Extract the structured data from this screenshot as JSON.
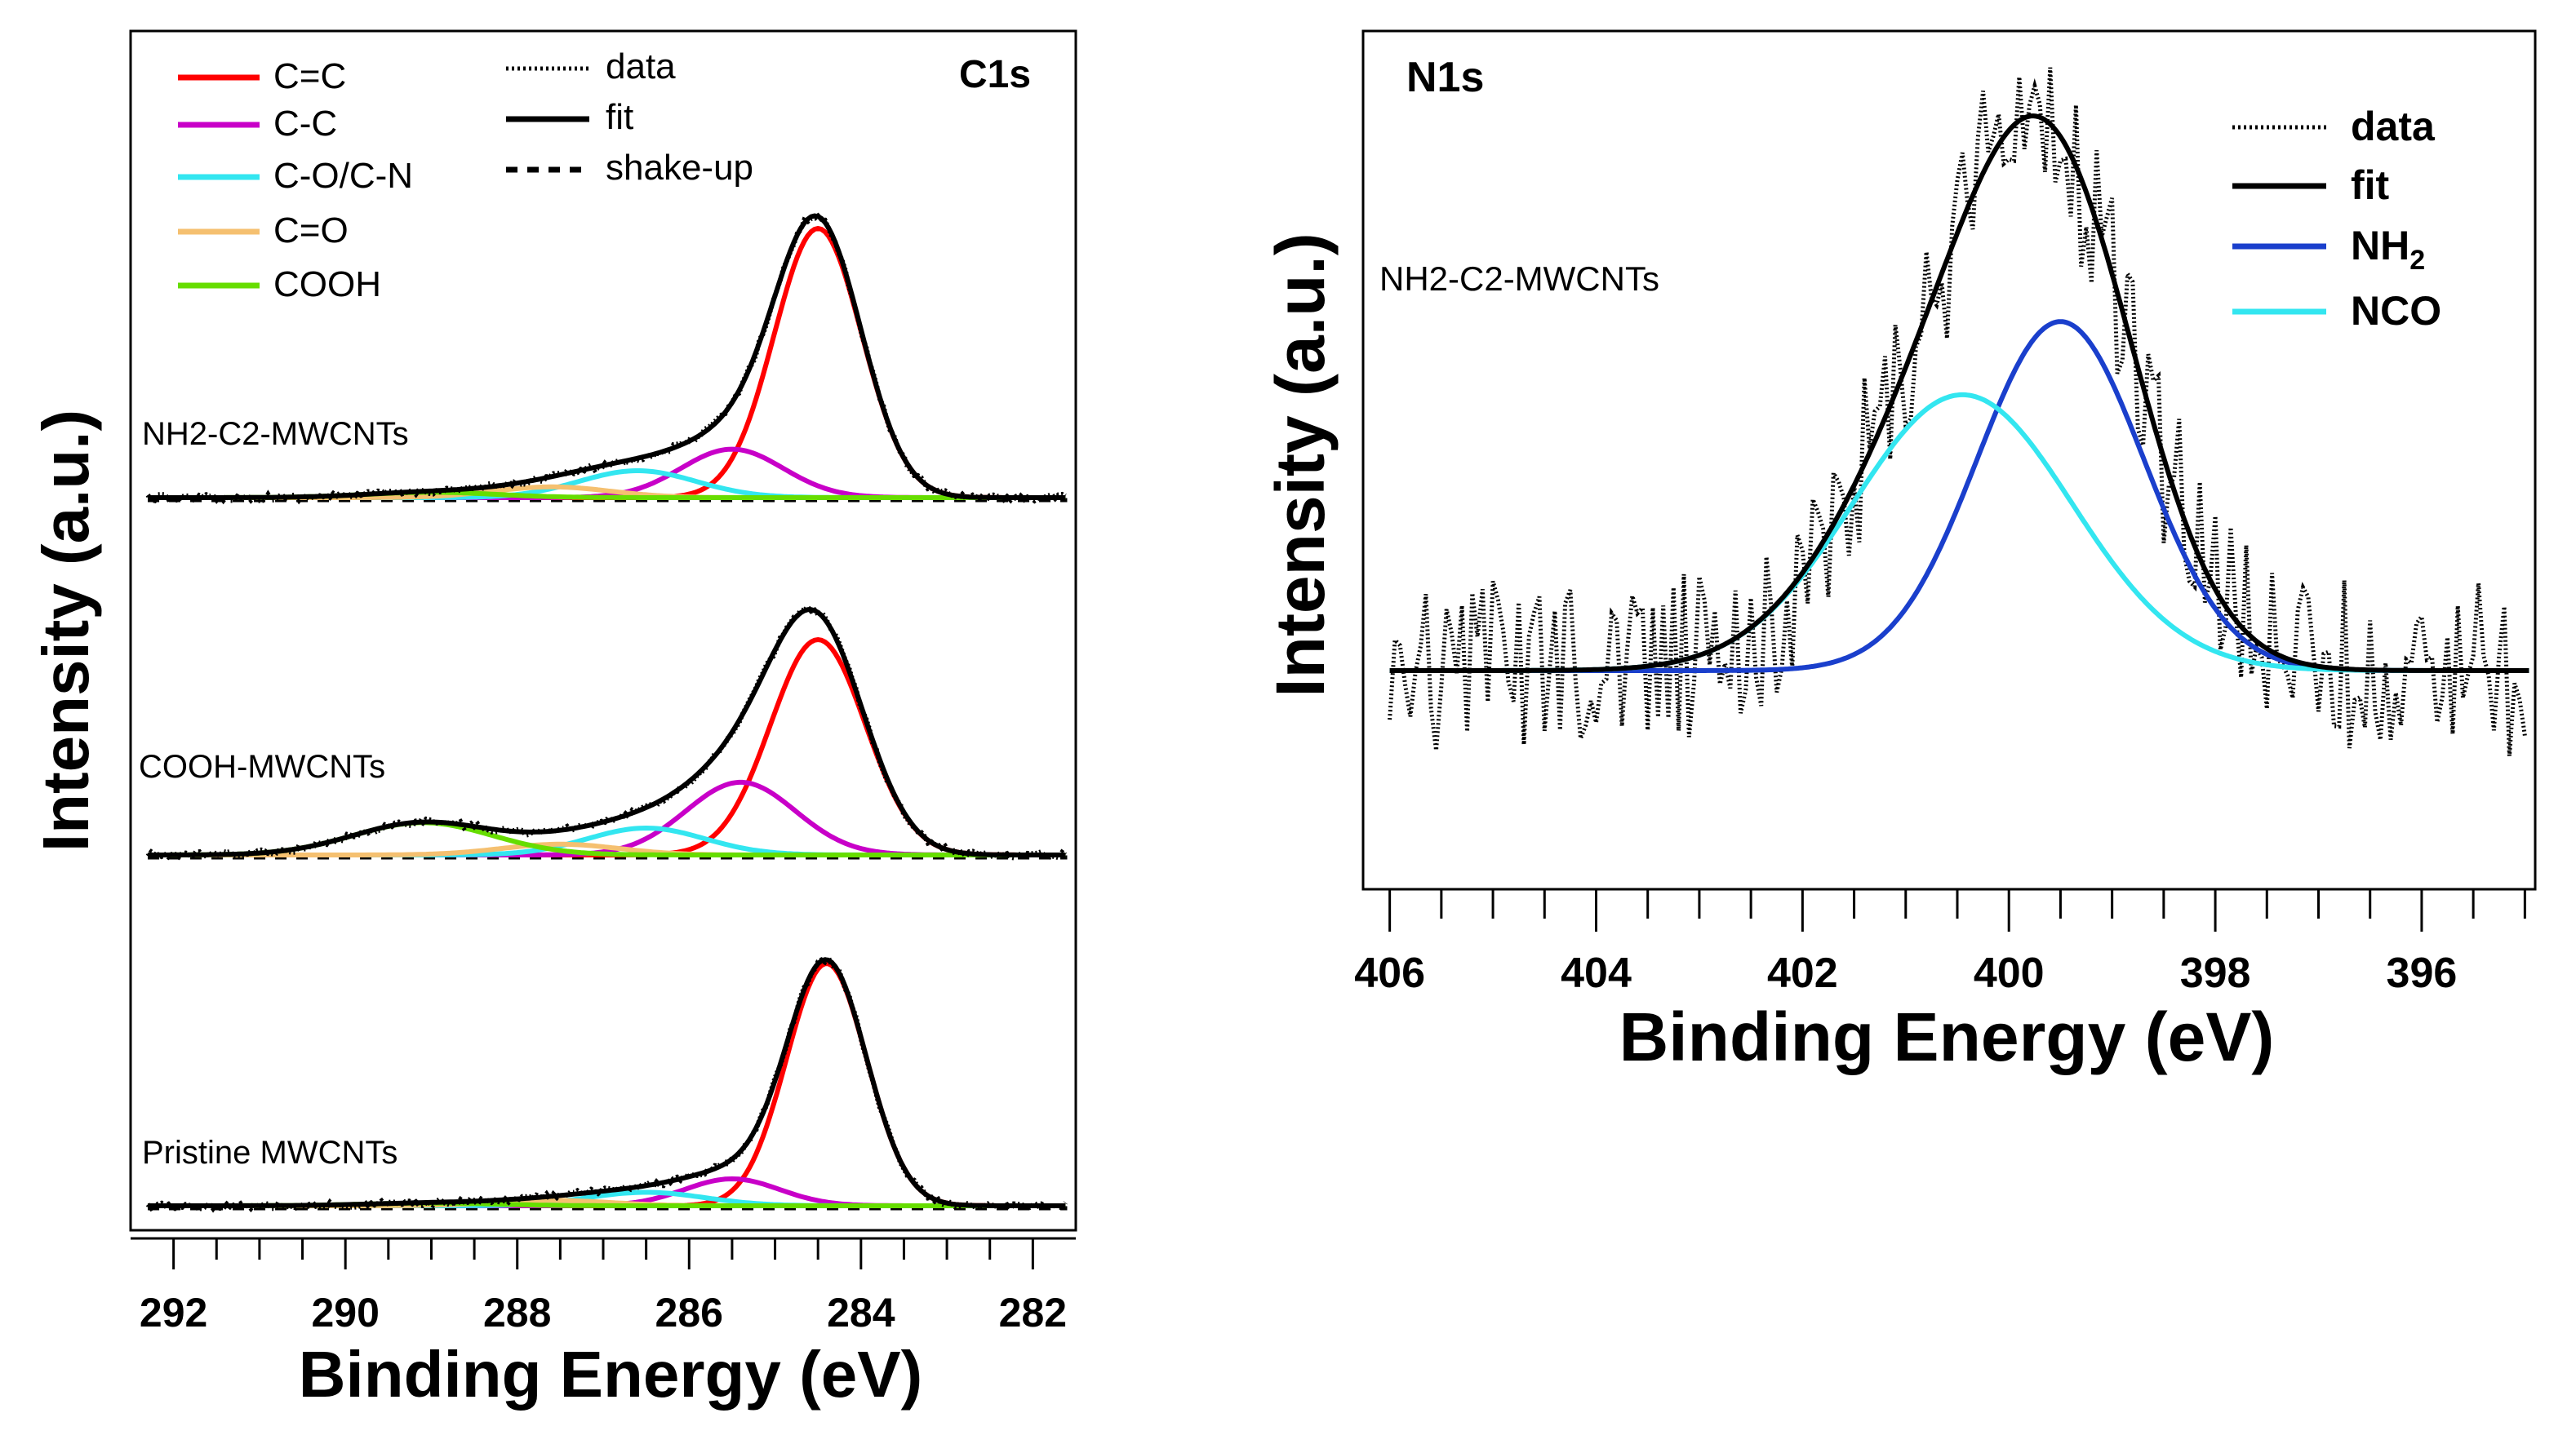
{
  "chart_data": [
    {
      "type": "line",
      "panel": "C1s",
      "title": "C1s",
      "xlabel": "Binding Energy (eV)",
      "ylabel": "Intensity (a.u.)",
      "xlim": [
        292.5,
        281.5
      ],
      "x_ticks": [
        292,
        290,
        288,
        286,
        284,
        282
      ],
      "legend": {
        "components": [
          {
            "label": "C=C",
            "color": "#ff0000"
          },
          {
            "label": "C-C",
            "color": "#c800c8"
          },
          {
            "label": "C-O/C-N",
            "color": "#33e6f0"
          },
          {
            "label": "C=O",
            "color": "#f5c070"
          },
          {
            "label": "COOH",
            "color": "#66dd00"
          }
        ],
        "styles": [
          {
            "label": "data",
            "style": "dotted"
          },
          {
            "label": "fit",
            "style": "solid"
          },
          {
            "label": "shake-up",
            "style": "dashed"
          }
        ]
      },
      "series": [
        {
          "name": "NH2-C2-MWCNTs",
          "peaks": [
            {
              "component": "C=C",
              "center": 284.5,
              "height": 1.0,
              "fwhm": 1.2
            },
            {
              "component": "C-C",
              "center": 285.5,
              "height": 0.18,
              "fwhm": 1.4
            },
            {
              "component": "C-O/C-N",
              "center": 286.6,
              "height": 0.1,
              "fwhm": 1.6
            },
            {
              "component": "C=O",
              "center": 287.6,
              "height": 0.04,
              "fwhm": 1.6
            },
            {
              "component": "COOH",
              "center": 289.0,
              "height": 0.02,
              "fwhm": 1.8
            }
          ]
        },
        {
          "name": "COOH-MWCNTs",
          "peaks": [
            {
              "component": "C=C",
              "center": 284.5,
              "height": 0.8,
              "fwhm": 1.3
            },
            {
              "component": "C-C",
              "center": 285.4,
              "height": 0.27,
              "fwhm": 1.5
            },
            {
              "component": "C-O/C-N",
              "center": 286.5,
              "height": 0.1,
              "fwhm": 1.6
            },
            {
              "component": "C=O",
              "center": 287.5,
              "height": 0.04,
              "fwhm": 1.6
            },
            {
              "component": "COOH",
              "center": 289.1,
              "height": 0.12,
              "fwhm": 1.9
            }
          ]
        },
        {
          "name": "Pristine MWCNTs",
          "peaks": [
            {
              "component": "C=C",
              "center": 284.4,
              "height": 0.9,
              "fwhm": 1.1
            },
            {
              "component": "C-C",
              "center": 285.5,
              "height": 0.1,
              "fwhm": 1.3
            },
            {
              "component": "C-O/C-N",
              "center": 286.5,
              "height": 0.05,
              "fwhm": 1.6
            },
            {
              "component": "C=O",
              "center": 287.6,
              "height": 0.02,
              "fwhm": 1.6
            },
            {
              "component": "COOH",
              "center": 289.0,
              "height": 0.01,
              "fwhm": 1.8
            }
          ]
        }
      ]
    },
    {
      "type": "line",
      "panel": "N1s",
      "title": "N1s",
      "sample": "NH2-C2-MWCNTs",
      "xlabel": "Binding Energy (eV)",
      "ylabel": "Intensity (a.u.)",
      "xlim": [
        406.1,
        394.9
      ],
      "x_ticks": [
        406,
        404,
        402,
        400,
        398,
        396
      ],
      "legend": [
        {
          "label": "data",
          "style": "dotted",
          "color": "#000000"
        },
        {
          "label": "fit",
          "style": "solid",
          "color": "#000000"
        },
        {
          "label": "NH",
          "subscript": "2",
          "style": "solid",
          "color": "#1a3fcc"
        },
        {
          "label": "NCO",
          "style": "solid",
          "color": "#33e6f0"
        }
      ],
      "peaks": [
        {
          "component": "NH2",
          "center": 399.5,
          "height": 0.62,
          "fwhm": 1.9
        },
        {
          "component": "NCO",
          "center": 400.45,
          "height": 0.49,
          "fwhm": 2.5
        }
      ]
    }
  ]
}
